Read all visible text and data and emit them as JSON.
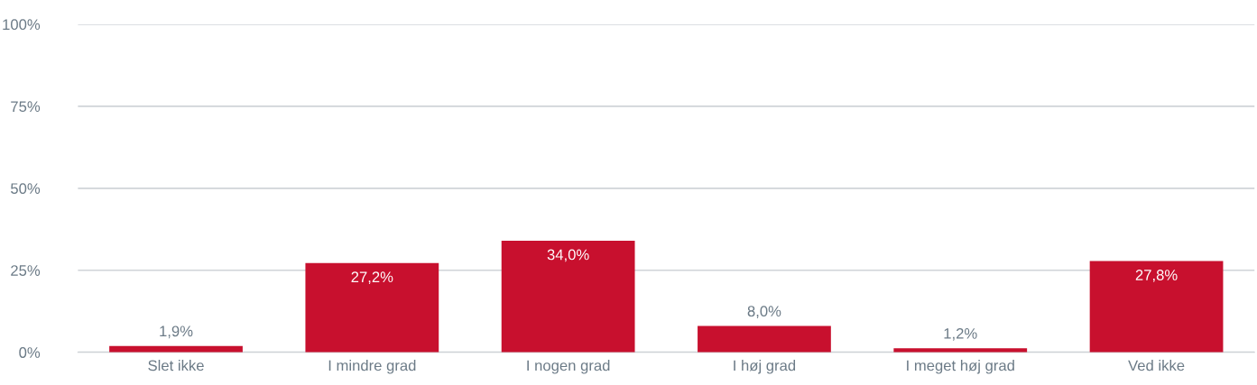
{
  "chart_data": {
    "type": "bar",
    "categories": [
      "Slet ikke",
      "I mindre grad",
      "I nogen grad",
      "I høj grad",
      "I meget høj grad",
      "Ved ikke"
    ],
    "values": [
      1.9,
      27.2,
      34.0,
      8.0,
      1.2,
      27.8
    ],
    "value_labels": [
      "1,9%",
      "27,2%",
      "34,0%",
      "8,0%",
      "1,2%",
      "27,8%"
    ],
    "color": "#c8102e",
    "ylim": [
      0,
      100
    ],
    "yticks": [
      {
        "value": 0,
        "label": "0%"
      },
      {
        "value": 25,
        "label": "25%"
      },
      {
        "value": 50,
        "label": "50%"
      },
      {
        "value": 75,
        "label": "75%"
      },
      {
        "value": 100,
        "label": "100%"
      }
    ],
    "grid": "y",
    "legend": false
  }
}
